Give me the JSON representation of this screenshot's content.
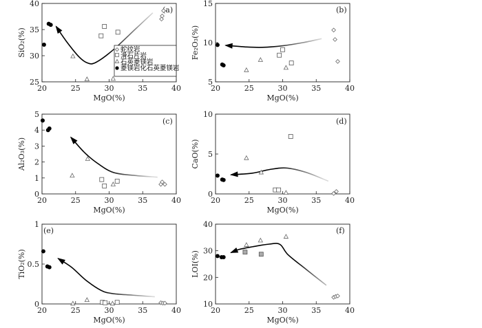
{
  "chart_data": [
    {
      "panel": "a",
      "type": "scatter",
      "panel_label": "(a)",
      "xlabel": "MgO(%)",
      "ylabel": "SiO₂(%)",
      "xlim": [
        20,
        40
      ],
      "ylim": [
        25,
        40
      ],
      "xticks": [
        20,
        25,
        30,
        35,
        40
      ],
      "yticks": [
        25,
        30,
        35,
        40
      ],
      "series": [
        {
          "name": "蛇纹岩",
          "marker": "diamond",
          "points": [
            [
              37.8,
              37.0
            ],
            [
              37.9,
              37.6
            ],
            [
              38.1,
              38.6
            ]
          ]
        },
        {
          "name": "滑石片岩",
          "marker": "square",
          "points": [
            [
              28.8,
              33.8
            ],
            [
              29.3,
              35.6
            ],
            [
              31.3,
              34.5
            ]
          ]
        },
        {
          "name": "石英菱镁岩",
          "marker": "triangle",
          "points": [
            [
              24.6,
              29.9
            ],
            [
              26.7,
              25.5
            ],
            [
              30.6,
              25.6
            ]
          ]
        },
        {
          "name": "菱镁岩化石英菱镁岩",
          "marker": "circle",
          "points": [
            [
              20.3,
              32.1
            ],
            [
              21.0,
              36.1
            ],
            [
              21.3,
              35.9
            ]
          ]
        }
      ],
      "trend": {
        "points": [
          [
            36.5,
            38.2
          ],
          [
            34,
            35.2
          ],
          [
            30.5,
            31
          ],
          [
            28,
            28.7
          ],
          [
            26.8,
            28.6
          ],
          [
            25.5,
            29.8
          ],
          [
            23.6,
            32.8
          ],
          [
            22.1,
            35.6
          ]
        ]
      },
      "legend": [
        "蛇纹岩",
        "滑石片岩",
        "石英菱镁岩",
        "菱镁岩化石英菱镁岩"
      ]
    },
    {
      "panel": "b",
      "type": "scatter",
      "panel_label": "(b)",
      "xlabel": "MgO(%)",
      "ylabel": "Fe₂O₃(%)",
      "xlim": [
        20,
        40
      ],
      "ylim": [
        5,
        15
      ],
      "xticks": [
        20,
        25,
        30,
        35,
        40
      ],
      "yticks": [
        5,
        10,
        15
      ],
      "series": [
        {
          "name": "蛇纹岩",
          "marker": "diamond",
          "points": [
            [
              37.6,
              11.6
            ],
            [
              37.8,
              10.4
            ],
            [
              38.2,
              7.6
            ]
          ]
        },
        {
          "name": "滑石片岩",
          "marker": "square",
          "points": [
            [
              29.5,
              8.4
            ],
            [
              30.0,
              9.1
            ],
            [
              31.3,
              7.4
            ]
          ]
        },
        {
          "name": "石英菱镁岩",
          "marker": "triangle",
          "points": [
            [
              24.6,
              6.5
            ],
            [
              26.7,
              7.8
            ],
            [
              30.5,
              6.8
            ]
          ]
        },
        {
          "name": "菱镁岩化石英菱镁岩",
          "marker": "circle",
          "points": [
            [
              20.3,
              9.7
            ],
            [
              21.0,
              7.2
            ],
            [
              21.2,
              7.1
            ]
          ]
        }
      ],
      "trend": {
        "points": [
          [
            35.8,
            10.5
          ],
          [
            33,
            10
          ],
          [
            30,
            9.6
          ],
          [
            27,
            9.4
          ],
          [
            24.5,
            9.45
          ],
          [
            21.5,
            9.65
          ]
        ]
      }
    },
    {
      "panel": "c",
      "type": "scatter",
      "panel_label": "(c)",
      "xlabel": "MgO(%)",
      "ylabel": "Al₂O₃(%)",
      "xlim": [
        20,
        40
      ],
      "ylim": [
        0,
        5
      ],
      "xticks": [
        20,
        25,
        30,
        35,
        40
      ],
      "yticks": [
        0,
        1,
        2,
        3,
        4,
        5
      ],
      "series": [
        {
          "name": "蛇纹岩",
          "marker": "diamond",
          "points": [
            [
              37.7,
              0.6
            ],
            [
              37.9,
              0.75
            ],
            [
              38.3,
              0.6
            ]
          ]
        },
        {
          "name": "滑石片岩",
          "marker": "square",
          "points": [
            [
              28.9,
              0.9
            ],
            [
              29.3,
              0.5
            ],
            [
              31.2,
              0.8
            ]
          ]
        },
        {
          "name": "石英菱镁岩",
          "marker": "triangle",
          "points": [
            [
              24.5,
              1.15
            ],
            [
              26.8,
              2.2
            ],
            [
              30.6,
              0.6
            ]
          ]
        },
        {
          "name": "菱镁岩化石英菱镁岩",
          "marker": "circle",
          "points": [
            [
              20.1,
              4.6
            ],
            [
              20.9,
              4.0
            ],
            [
              21.1,
              4.1
            ]
          ]
        }
      ],
      "trend": {
        "points": [
          [
            37.2,
            1.05
          ],
          [
            34,
            1.15
          ],
          [
            30.6,
            1.35
          ],
          [
            28,
            2.0
          ],
          [
            26.2,
            2.65
          ],
          [
            24.3,
            3.55
          ]
        ]
      }
    },
    {
      "panel": "d",
      "type": "scatter",
      "panel_label": "(d)",
      "xlabel": "MgO(%)",
      "ylabel": "CaO(%)",
      "xlim": [
        20,
        40
      ],
      "ylim": [
        0,
        10
      ],
      "xticks": [
        20,
        25,
        30,
        35,
        40
      ],
      "yticks": [
        0,
        5,
        10
      ],
      "series": [
        {
          "name": "蛇纹岩",
          "marker": "diamond",
          "points": [
            [
              37.6,
              0.05
            ],
            [
              38.0,
              0.3
            ]
          ]
        },
        {
          "name": "滑石片岩",
          "marker": "square",
          "points": [
            [
              28.9,
              0.5
            ],
            [
              29.4,
              0.5
            ],
            [
              31.2,
              7.2
            ]
          ]
        },
        {
          "name": "石英菱镁岩",
          "marker": "triangle",
          "points": [
            [
              24.6,
              4.5
            ],
            [
              26.8,
              2.7
            ],
            [
              30.5,
              0.15
            ]
          ]
        },
        {
          "name": "菱镁岩化石英菱镁岩",
          "marker": "circle",
          "points": [
            [
              20.3,
              2.3
            ],
            [
              21.0,
              1.8
            ],
            [
              21.2,
              1.75
            ]
          ]
        }
      ],
      "trend": {
        "points": [
          [
            36.8,
            1.6
          ],
          [
            33.5,
            2.7
          ],
          [
            30.5,
            3.25
          ],
          [
            28,
            3.05
          ],
          [
            25.5,
            2.6
          ],
          [
            22.3,
            2.4
          ]
        ]
      }
    },
    {
      "panel": "e",
      "type": "scatter",
      "panel_label": "(e)",
      "xlabel": "MgO(%)",
      "ylabel": "TiO₂(%)",
      "xlim": [
        20,
        40
      ],
      "ylim": [
        0,
        1
      ],
      "xticks": [
        20,
        25,
        30,
        35,
        40
      ],
      "yticks": [
        0,
        0.5,
        1
      ],
      "series": [
        {
          "name": "蛇纹岩",
          "marker": "diamond",
          "points": [
            [
              37.7,
              0.015
            ],
            [
              38.0,
              0.01
            ],
            [
              38.3,
              0.01
            ]
          ]
        },
        {
          "name": "滑石片岩",
          "marker": "square",
          "points": [
            [
              29.0,
              0.02
            ],
            [
              29.4,
              0.015
            ],
            [
              31.2,
              0.02
            ]
          ]
        },
        {
          "name": "石英菱镁岩",
          "marker": "triangle",
          "points": [
            [
              24.6,
              0.005
            ],
            [
              26.7,
              0.05
            ],
            [
              30.5,
              0.005
            ]
          ]
        },
        {
          "name": "菱镁岩化石英菱镁岩",
          "marker": "circle",
          "points": [
            [
              20.2,
              0.66
            ],
            [
              20.8,
              0.47
            ],
            [
              21.1,
              0.46
            ]
          ]
        }
      ],
      "trend": {
        "points": [
          [
            36.8,
            0.09
          ],
          [
            33.5,
            0.11
          ],
          [
            30.5,
            0.13
          ],
          [
            28.8,
            0.17
          ],
          [
            26.5,
            0.3
          ],
          [
            24.4,
            0.46
          ],
          [
            22.4,
            0.57
          ]
        ]
      }
    },
    {
      "panel": "f",
      "type": "scatter",
      "panel_label": "(f)",
      "xlabel": "MgO(%)",
      "ylabel": "LOI(%)",
      "xlim": [
        20,
        40
      ],
      "ylim": [
        10,
        40
      ],
      "xticks": [
        20,
        25,
        30,
        35,
        40
      ],
      "yticks": [
        10,
        20,
        30,
        40
      ],
      "series": [
        {
          "name": "蛇纹岩",
          "marker": "diamond",
          "points": [
            [
              37.6,
              12.5
            ],
            [
              37.9,
              12.8
            ],
            [
              38.2,
              13.0
            ]
          ]
        },
        {
          "name": "滑石片岩",
          "marker": "square",
          "points": [
            [
              24.4,
              29.5
            ],
            [
              26.8,
              28.7
            ]
          ]
        },
        {
          "name": "石英菱镁岩",
          "marker": "triangle",
          "points": [
            [
              24.6,
              32.2
            ],
            [
              26.7,
              33.9
            ],
            [
              30.5,
              35.3
            ]
          ]
        },
        {
          "name": "菱镁岩化石英菱镁岩",
          "marker": "circle",
          "points": [
            [
              20.3,
              28.0
            ],
            [
              20.9,
              27.6
            ],
            [
              21.2,
              27.6
            ]
          ]
        }
      ],
      "trend": {
        "points": [
          [
            36.5,
            17
          ],
          [
            33.5,
            23
          ],
          [
            30.8,
            28.5
          ],
          [
            29.6,
            32.4
          ],
          [
            28,
            32.5
          ],
          [
            25.5,
            31.5
          ],
          [
            23.5,
            30.5
          ],
          [
            22.3,
            29.3
          ]
        ]
      }
    }
  ]
}
